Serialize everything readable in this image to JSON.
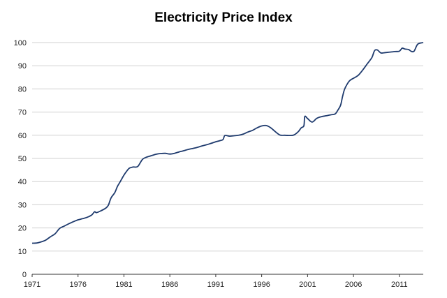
{
  "chart_data": {
    "type": "line",
    "title": "Electricity Price Index",
    "xlabel": "",
    "ylabel": "",
    "xlim": [
      1971,
      2013.6
    ],
    "ylim": [
      0,
      100
    ],
    "x_ticks": [
      "1971",
      "1976",
      "1981",
      "1986",
      "1991",
      "1996",
      "2001",
      "2006",
      "2011"
    ],
    "y_ticks": [
      "0",
      "10",
      "20",
      "30",
      "40",
      "50",
      "60",
      "70",
      "80",
      "90",
      "100"
    ],
    "grid": "horizontal",
    "legend": "none",
    "line_color": "#1f3b6e",
    "series": [
      {
        "x": [
          1971,
          1971.5,
          1972,
          1972.5,
          1973,
          1973.5,
          1974,
          1974.5,
          1975,
          1975.5,
          1976,
          1976.5,
          1977,
          1977.5,
          1977.8,
          1978,
          1978.5,
          1979,
          1979.3,
          1979.6,
          1980,
          1980.3,
          1980.6,
          1981,
          1981.3,
          1981.6,
          1982,
          1982.5,
          1983,
          1983.5,
          1984,
          1984.5,
          1985,
          1985.5,
          1986,
          1986.5,
          1987,
          1987.5,
          1988,
          1988.5,
          1989,
          1989.5,
          1990,
          1990.5,
          1991,
          1991.5,
          1991.8,
          1992,
          1992.5,
          1993,
          1993.5,
          1994,
          1994.5,
          1995,
          1995.5,
          1996,
          1996.5,
          1997,
          1997.5,
          1998,
          1998.5,
          1999,
          1999.5,
          2000,
          2000.3,
          2000.6,
          2000.7,
          2001,
          2001.5,
          2002,
          2002.5,
          2003,
          2003.5,
          2004,
          2004.3,
          2004.6,
          2004.8,
          2005,
          2005.3,
          2005.6,
          2006,
          2006.5,
          2007,
          2007.5,
          2008,
          2008.3,
          2008.6,
          2009,
          2009.5,
          2010,
          2010.5,
          2011,
          2011.3,
          2011.6,
          2012,
          2012.3,
          2012.6,
          2013,
          2013.6
        ],
        "y": [
          13.4,
          13.5,
          14,
          14.8,
          16.2,
          17.5,
          19.8,
          20.8,
          21.8,
          22.7,
          23.5,
          24,
          24.6,
          25.6,
          27,
          26.6,
          27.4,
          28.5,
          29.8,
          33,
          35.2,
          38,
          40,
          42.8,
          44.5,
          45.8,
          46.3,
          46.5,
          49.5,
          50.6,
          51.2,
          51.8,
          52.1,
          52.2,
          51.9,
          52.2,
          52.8,
          53.3,
          53.9,
          54.3,
          54.8,
          55.4,
          55.9,
          56.5,
          57.2,
          57.7,
          58.2,
          59.9,
          59.6,
          59.8,
          60,
          60.5,
          61.4,
          62.1,
          63.2,
          64,
          64.2,
          63.2,
          61.5,
          60.1,
          60,
          59.9,
          60.1,
          61.6,
          63.2,
          64.1,
          68.1,
          67.2,
          65.7,
          67.3,
          68,
          68.4,
          68.8,
          69.2,
          70.8,
          73,
          76.5,
          79.5,
          82,
          83.6,
          84.6,
          85.8,
          88.1,
          90.8,
          93.5,
          96.5,
          96.8,
          95.5,
          95.7,
          95.9,
          96.1,
          96.3,
          97.6,
          97.2,
          97,
          96.2,
          96.3,
          99.3,
          100
        ]
      }
    ]
  }
}
